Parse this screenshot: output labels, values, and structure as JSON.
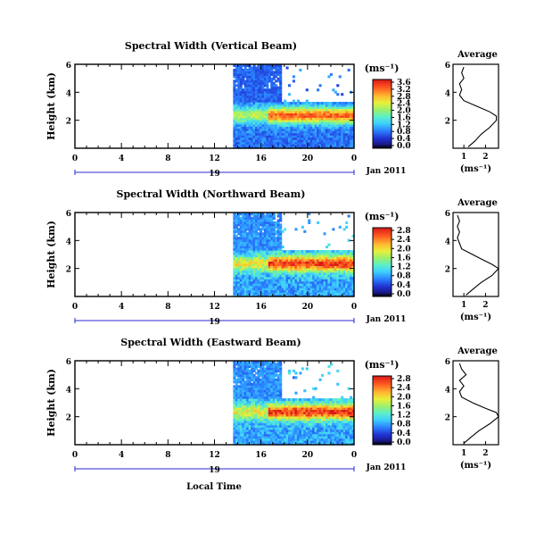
{
  "figure": {
    "x_axis_label": "Local Time",
    "date_label": "Jan 2011",
    "day_label": "19",
    "unit_label": "(ms⁻¹)",
    "avg_title": "Average",
    "y_label": "Height (km)"
  },
  "chart_data": [
    {
      "type": "heatmap",
      "title": "Spectral Width (Vertical Beam)",
      "xlabel": "Local Time",
      "ylabel": "Height (km)",
      "xlim": [
        0,
        24
      ],
      "ylim": [
        0,
        6
      ],
      "x_ticks": [
        "0",
        "4",
        "8",
        "12",
        "16",
        "20",
        "0"
      ],
      "y_ticks": [
        "6",
        "4",
        "2"
      ],
      "colorbar": {
        "label": "(ms⁻¹)",
        "range": [
          0.0,
          3.6
        ],
        "ticks": [
          "3.6",
          "3.2",
          "2.8",
          "2.4",
          "2.0",
          "1.6",
          "1.2",
          "0.8",
          "0.4",
          "0.0"
        ]
      },
      "data_start_hour": 13.6,
      "average_profile": {
        "title": "Average",
        "xlabel": "(ms⁻¹)",
        "x_ticks": [
          "1",
          "2"
        ],
        "y_ticks": [
          "6",
          "4",
          "2"
        ],
        "height_km": [
          0.1,
          0.5,
          1.0,
          1.5,
          2.0,
          2.3,
          2.6,
          3.0,
          3.4,
          3.8,
          4.2,
          4.6,
          5.0,
          5.4,
          5.8
        ],
        "width_ms": [
          1.2,
          1.5,
          1.8,
          2.2,
          2.5,
          2.5,
          2.2,
          1.6,
          1.0,
          0.8,
          0.9,
          0.8,
          1.0,
          0.9,
          1.0
        ]
      }
    },
    {
      "type": "heatmap",
      "title": "Spectral Width (Northward Beam)",
      "xlabel": "Local Time",
      "ylabel": "Height (km)",
      "xlim": [
        0,
        24
      ],
      "ylim": [
        0,
        6
      ],
      "x_ticks": [
        "0",
        "4",
        "8",
        "12",
        "16",
        "20",
        "0"
      ],
      "y_ticks": [
        "6",
        "4",
        "2"
      ],
      "colorbar": {
        "label": "(ms⁻¹)",
        "range": [
          0.0,
          2.8
        ],
        "ticks": [
          "2.8",
          "2.4",
          "2.0",
          "1.6",
          "1.2",
          "0.8",
          "0.4",
          "0.0"
        ]
      },
      "data_start_hour": 13.6,
      "average_profile": {
        "title": "Average",
        "xlabel": "(ms⁻¹)",
        "x_ticks": [
          "1",
          "2"
        ],
        "y_ticks": [
          "6",
          "4",
          "2"
        ],
        "height_km": [
          0.1,
          0.5,
          1.0,
          1.5,
          2.0,
          2.3,
          2.6,
          3.0,
          3.4,
          3.8,
          4.2,
          4.6,
          5.0,
          5.4,
          5.8
        ],
        "width_ms": [
          1.1,
          1.4,
          1.8,
          2.3,
          2.6,
          2.3,
          1.9,
          1.4,
          0.9,
          0.8,
          0.7,
          0.8,
          0.7,
          0.8,
          0.7
        ]
      }
    },
    {
      "type": "heatmap",
      "title": "Spectral Width (Eastward Beam)",
      "xlabel": "Local Time",
      "ylabel": "Height (km)",
      "xlim": [
        0,
        24
      ],
      "ylim": [
        0,
        6
      ],
      "x_ticks": [
        "0",
        "4",
        "8",
        "12",
        "16",
        "20",
        "0"
      ],
      "y_ticks": [
        "6",
        "4",
        "2"
      ],
      "colorbar": {
        "label": "(ms⁻¹)",
        "range": [
          0.0,
          2.8
        ],
        "ticks": [
          "2.8",
          "2.4",
          "2.0",
          "1.6",
          "1.2",
          "0.8",
          "0.4",
          "0.0"
        ]
      },
      "data_start_hour": 13.6,
      "average_profile": {
        "title": "Average",
        "xlabel": "(ms⁻¹)",
        "x_ticks": [
          "1",
          "2"
        ],
        "y_ticks": [
          "6",
          "4",
          "2"
        ],
        "height_km": [
          0.1,
          0.5,
          1.0,
          1.5,
          2.0,
          2.3,
          2.6,
          3.0,
          3.4,
          3.8,
          4.2,
          4.6,
          5.0,
          5.4,
          5.8
        ],
        "width_ms": [
          1.0,
          1.3,
          1.7,
          2.2,
          2.6,
          2.5,
          2.0,
          1.4,
          0.9,
          0.8,
          1.0,
          0.8,
          1.1,
          0.9,
          0.8
        ]
      }
    }
  ]
}
